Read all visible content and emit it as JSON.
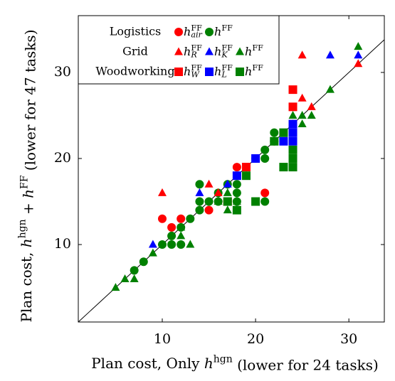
{
  "chart_data": {
    "type": "scatter",
    "xlabel": [
      {
        "text": "Plan cost, Only "
      },
      {
        "text": "h",
        "style": "italic"
      },
      {
        "text": "hgn",
        "style": "sup"
      },
      {
        "text": " (lower for 24 tasks)"
      }
    ],
    "ylabel": [
      {
        "text": "Plan cost, "
      },
      {
        "text": "h",
        "style": "italic"
      },
      {
        "text": "hgn",
        "style": "sup"
      },
      {
        "text": " + "
      },
      {
        "text": "h",
        "style": "italic"
      },
      {
        "text": "FF",
        "style": "sup"
      },
      {
        "text": " (lower for 47 tasks)"
      }
    ],
    "xlim": [
      1,
      33.8
    ],
    "ylim": [
      1,
      36.6
    ],
    "xticks": [
      10,
      20,
      30
    ],
    "yticks": [
      10,
      20,
      30
    ],
    "diagonal": true,
    "grid": false,
    "legend": "upper left",
    "series": [
      {
        "group": "Logistics",
        "label": [
          {
            "text": "h",
            "style": "italic"
          },
          {
            "text": "FF",
            "style": "sup"
          },
          {
            "text": "air",
            "style": "sub"
          }
        ],
        "color": "#ff0000",
        "marker": "circle",
        "x": [
          10,
          11,
          12,
          15,
          18,
          21
        ],
        "values": [
          13,
          12,
          13,
          14,
          19,
          16
        ]
      },
      {
        "label": [
          {
            "text": "h",
            "style": "italic"
          },
          {
            "text": "FF",
            "style": "sup"
          }
        ],
        "color": "#008000",
        "marker": "circle",
        "x": [
          7,
          8,
          10,
          11,
          11,
          12,
          12,
          13,
          14,
          14,
          14,
          15,
          16,
          16,
          17,
          18,
          18,
          18,
          17,
          20,
          21,
          21,
          21,
          22,
          22
        ],
        "values": [
          7,
          8,
          10,
          10,
          11,
          10,
          12,
          13,
          14,
          15,
          17,
          15,
          16,
          15,
          17,
          17,
          16,
          15,
          15,
          20,
          21,
          20,
          15,
          22,
          23
        ]
      },
      {
        "group": "Grid",
        "label": [
          {
            "text": "h",
            "style": "italic"
          },
          {
            "text": "FF",
            "style": "sup"
          },
          {
            "text": "R",
            "style": "sub"
          }
        ],
        "color": "#ff0000",
        "marker": "triangle",
        "x": [
          10,
          15,
          16,
          25,
          25,
          26,
          31
        ],
        "values": [
          16,
          17,
          16,
          32,
          27,
          26,
          31
        ]
      },
      {
        "label": [
          {
            "text": "h",
            "style": "italic"
          },
          {
            "text": "FF",
            "style": "sup"
          },
          {
            "text": "K",
            "style": "sub"
          }
        ],
        "color": "#0000ff",
        "marker": "triangle",
        "x": [
          9,
          14,
          17,
          18,
          28,
          31
        ],
        "values": [
          10,
          16,
          17,
          14,
          32,
          32
        ]
      },
      {
        "label": [
          {
            "text": "h",
            "style": "italic"
          },
          {
            "text": "FF",
            "style": "sup"
          }
        ],
        "color": "#008000",
        "marker": "triangle",
        "x": [
          5,
          6,
          7,
          9,
          12,
          12,
          13,
          16,
          17,
          17,
          18,
          19,
          24,
          24,
          25,
          25,
          26,
          28,
          31
        ],
        "values": [
          5,
          6,
          6,
          9,
          11,
          12,
          10,
          15,
          14,
          16,
          15,
          18,
          24,
          25,
          25,
          24,
          25,
          28,
          33
        ]
      },
      {
        "group": "Woodworking",
        "label": [
          {
            "text": "h",
            "style": "italic"
          },
          {
            "text": "FF",
            "style": "sup"
          },
          {
            "text": "W",
            "style": "sub"
          }
        ],
        "color": "#ff0000",
        "marker": "square",
        "x": [
          19,
          24,
          24,
          17
        ],
        "values": [
          19,
          28,
          26,
          15
        ]
      },
      {
        "label": [
          {
            "text": "h",
            "style": "italic"
          },
          {
            "text": "FF",
            "style": "sup"
          },
          {
            "text": "L",
            "style": "sub"
          }
        ],
        "color": "#0000ff",
        "marker": "square",
        "x": [
          18,
          20,
          23,
          24,
          24,
          24
        ],
        "values": [
          18,
          20,
          22,
          22,
          23,
          24
        ]
      },
      {
        "label": [
          {
            "text": "h",
            "style": "italic"
          },
          {
            "text": "FF",
            "style": "sup"
          }
        ],
        "color": "#008000",
        "marker": "square",
        "x": [
          17,
          18,
          19,
          20,
          22,
          23,
          23,
          24,
          24,
          24
        ],
        "values": [
          15,
          14,
          18,
          15,
          22,
          19,
          23,
          20,
          21,
          19
        ]
      }
    ]
  }
}
